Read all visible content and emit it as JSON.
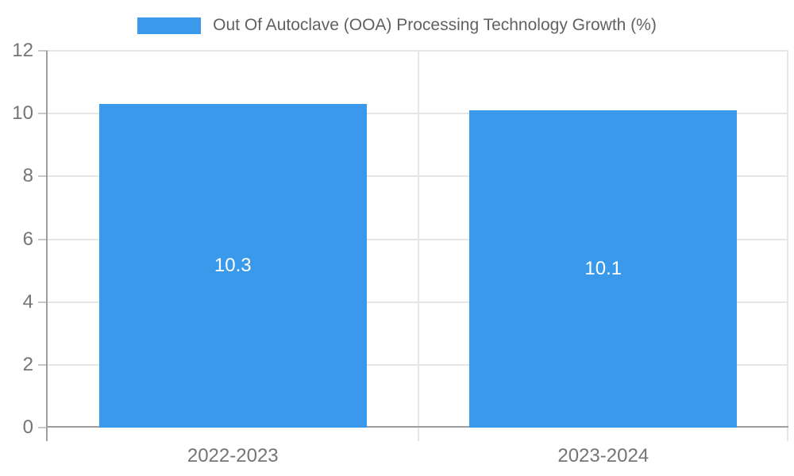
{
  "chart_data": {
    "type": "bar",
    "title": "Out Of Autoclave (OOA) Processing Technology Growth (%)",
    "categories": [
      "2022-2023",
      "2023-2024"
    ],
    "series": [
      {
        "name": "Out Of Autoclave (OOA) Processing Technology Growth (%)",
        "values": [
          10.3,
          10.1
        ]
      }
    ],
    "bar_labels": [
      "10.3",
      "10.1"
    ],
    "xlabel": "",
    "ylabel": "",
    "ylim": [
      0,
      12
    ],
    "yticks": [
      0,
      2,
      4,
      6,
      8,
      10,
      12
    ],
    "grid": true,
    "legend_position": "top",
    "colors": {
      "bar": "#3B99EC",
      "bar_label": "#FFFFFF",
      "axis": "#9E9E9E",
      "gridline": "#E6E6E6",
      "tick_mark": "#C9C9C9",
      "tick_text": "#757575",
      "legend_text": "#616161",
      "background": "#FFFFFF"
    }
  }
}
